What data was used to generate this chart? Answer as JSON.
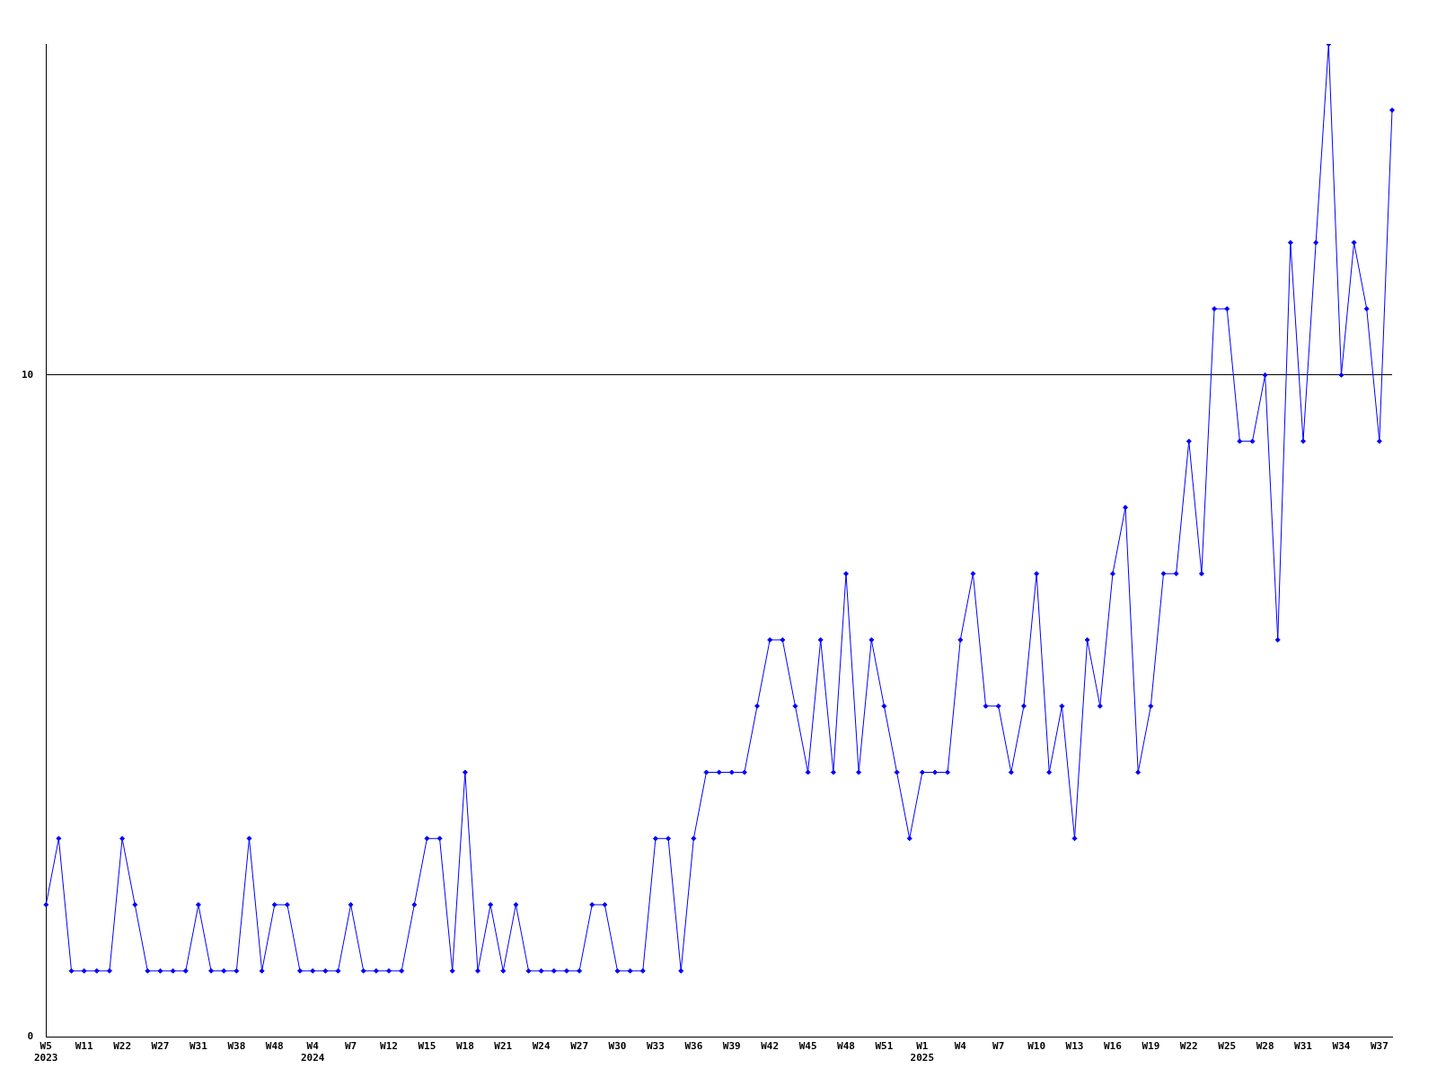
{
  "chart_data": {
    "type": "line",
    "categories": [
      "W5\n2023",
      null,
      null,
      "W11",
      null,
      null,
      "W22",
      null,
      null,
      "W27",
      null,
      null,
      "W31",
      null,
      null,
      "W38",
      null,
      null,
      "W48",
      null,
      null,
      "W4\n2024",
      null,
      null,
      "W7",
      null,
      null,
      "W12",
      null,
      null,
      "W15",
      null,
      null,
      "W18",
      null,
      null,
      "W21",
      null,
      null,
      "W24",
      null,
      null,
      "W27",
      null,
      null,
      "W30",
      null,
      null,
      "W33",
      null,
      null,
      "W36",
      null,
      null,
      "W39",
      null,
      null,
      "W42",
      null,
      null,
      "W45",
      null,
      null,
      "W48",
      null,
      null,
      "W51",
      null,
      null,
      "W1\n2025",
      null,
      null,
      "W4",
      null,
      null,
      "W7",
      null,
      null,
      "W10",
      null,
      null,
      "W13",
      null,
      null,
      "W16",
      null,
      null,
      "W19",
      null,
      null,
      "W22",
      null,
      null,
      "W25",
      null,
      null,
      "W28",
      null,
      null,
      "W31",
      null,
      null,
      "W34",
      null,
      null,
      "W37",
      null
    ],
    "series": [
      {
        "color": "#0000ff",
        "values": [
          2,
          3,
          1,
          1,
          1,
          1,
          3,
          2,
          1,
          1,
          1,
          1,
          2,
          1,
          1,
          1,
          3,
          1,
          2,
          2,
          1,
          1,
          1,
          1,
          2,
          1,
          1,
          1,
          1,
          2,
          3,
          3,
          1,
          4,
          1,
          2,
          1,
          2,
          1,
          1,
          1,
          1,
          1,
          2,
          2,
          1,
          1,
          1,
          3,
          3,
          1,
          3,
          4,
          4,
          4,
          4,
          5,
          6,
          6,
          5,
          4,
          6,
          4,
          7,
          4,
          6,
          5,
          4,
          3,
          4,
          4,
          4,
          6,
          7,
          5,
          5,
          4,
          5,
          7,
          4,
          5,
          3,
          6,
          5,
          7,
          8,
          4,
          5,
          7,
          7,
          9,
          7,
          11,
          11,
          9,
          9,
          10,
          6,
          12,
          9,
          12,
          15,
          10,
          12,
          11,
          9,
          14
        ]
      }
    ],
    "ylim": [
      0,
      15
    ],
    "yticks": [
      0,
      10
    ],
    "grid": "y",
    "marker": "diamond",
    "line_style": "solid",
    "legend": false
  }
}
